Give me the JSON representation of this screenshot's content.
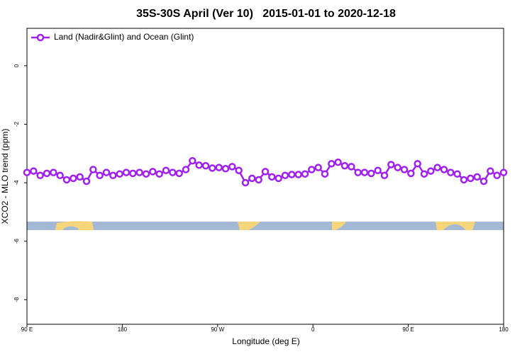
{
  "chart_data": {
    "type": "line",
    "title": "35S-30S April (Ver 10)   2015-01-01 to 2020-12-18",
    "x_label": "Longitude (deg E)",
    "y_label": "XCO2 - MLO trend (ppm)",
    "legend_position": "top-left",
    "xlim": [
      90,
      540
    ],
    "ylim": [
      -8.84,
      1.28
    ],
    "xticks": [
      {
        "value": 90,
        "label": "90 E"
      },
      {
        "value": 180,
        "label": "180"
      },
      {
        "value": 270,
        "label": "90 W"
      },
      {
        "value": 360,
        "label": "0"
      },
      {
        "value": 450,
        "label": "90 E"
      },
      {
        "value": 540,
        "label": "180"
      }
    ],
    "yticks": [
      0,
      -2,
      -4,
      -6,
      -8
    ],
    "x": [
      90,
      96.25,
      102.5,
      108.75,
      115,
      121.25,
      127.5,
      133.75,
      140,
      146.25,
      152.5,
      158.75,
      165,
      171.25,
      177.5,
      183.75,
      190,
      196.25,
      202.5,
      208.75,
      215,
      221.25,
      227.5,
      233.75,
      240,
      246.25,
      252.5,
      258.75,
      265,
      271.25,
      277.5,
      283.75,
      290,
      296.25,
      302.5,
      308.75,
      315,
      321.25,
      327.5,
      333.75,
      340,
      346.25,
      352.5,
      358.75,
      365,
      371.25,
      377.5,
      383.75,
      390,
      396.25,
      402.5,
      408.75,
      415,
      421.25,
      427.5,
      433.75,
      440,
      446.25,
      452.5,
      458.75,
      465,
      471.25,
      477.5,
      483.75,
      490,
      496.25,
      502.5,
      508.75,
      515,
      521.25,
      527.5,
      533.75,
      540
    ],
    "series": [
      {
        "name": "Land (Nadir&Glint) and Ocean (Glint)",
        "color": "#a020f0",
        "values": [
          -3.65,
          -3.6,
          -3.75,
          -3.68,
          -3.65,
          -3.75,
          -3.9,
          -3.85,
          -3.8,
          -3.95,
          -3.55,
          -3.75,
          -3.65,
          -3.75,
          -3.7,
          -3.65,
          -3.68,
          -3.65,
          -3.7,
          -3.62,
          -3.7,
          -3.58,
          -3.65,
          -3.68,
          -3.55,
          -3.25,
          -3.4,
          -3.42,
          -3.5,
          -3.48,
          -3.52,
          -3.45,
          -3.58,
          -4.0,
          -3.85,
          -3.9,
          -3.62,
          -3.8,
          -3.85,
          -3.75,
          -3.72,
          -3.72,
          -3.7,
          -3.55,
          -3.48,
          -3.7,
          -3.35,
          -3.3,
          -3.42,
          -3.45,
          -3.65,
          -3.65,
          -3.68,
          -3.58,
          -3.75,
          -3.38,
          -3.48,
          -3.55,
          -3.68,
          -3.35,
          -3.7,
          -3.6,
          -3.48,
          -3.55,
          -3.65,
          -3.7,
          -3.9,
          -3.85,
          -3.8,
          -3.95,
          -3.6,
          -3.75,
          -3.65
        ]
      }
    ]
  }
}
